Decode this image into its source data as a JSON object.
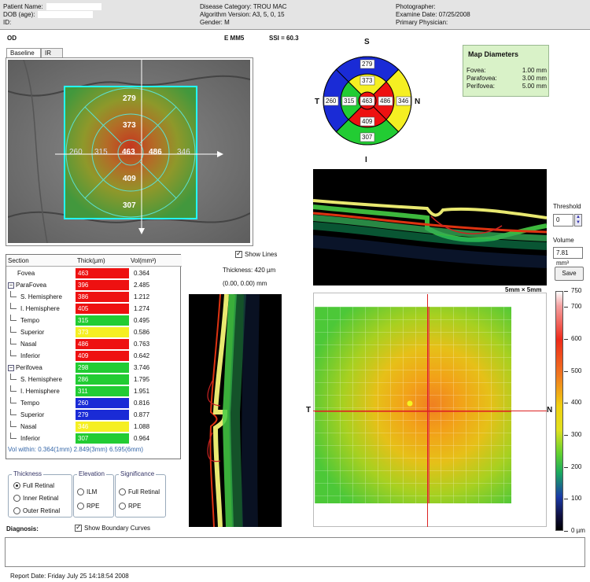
{
  "header": {
    "patient_name_label": "Patient Name:",
    "dob_label": "DOB (age):",
    "id_label": "ID:",
    "disease_category": "Disease Category: TROU MAC",
    "algorithm_version": "Algorithm Version: A3, 5, 0, 15",
    "gender": "Gender: M",
    "photographer": "Photographer:",
    "examine_date": "Examine Date: 07/25/2008",
    "primary_physician": "Primary Physician:"
  },
  "scan": {
    "eye": "OD",
    "protocol": "E MM5",
    "ssi": "SSI = 60.3"
  },
  "tabs": [
    "Baseline",
    "IR"
  ],
  "fundus_values": {
    "top": "279",
    "upper": "373",
    "t_outer": "260",
    "t_inner": "315",
    "center": "463",
    "n_inner": "486",
    "n_outer": "346",
    "lower": "409",
    "bottom": "307"
  },
  "etdrs": {
    "S": "S",
    "N": "N",
    "I": "I",
    "T": "T",
    "colors": {
      "blue": "#1a2bd6",
      "yellow": "#f5ef22",
      "green": "#22cc33",
      "red": "#ee1111"
    }
  },
  "map_diameters": {
    "title": "Map Diameters",
    "rows": [
      {
        "label": "Fovea:",
        "value": "1.00 mm"
      },
      {
        "label": "Parafovea:",
        "value": "3.00 mm"
      },
      {
        "label": "Perifovea:",
        "value": "5.00 mm"
      }
    ]
  },
  "table": {
    "headers": [
      "Section",
      "Thick(µm)",
      "Vol(mm³)"
    ],
    "rows": [
      {
        "section": "Fovea",
        "thick": "463",
        "vol": "0.364",
        "color": "#ee1111",
        "indent": 1
      },
      {
        "section": "ParaFovea",
        "thick": "396",
        "vol": "2.485",
        "color": "#ee1111",
        "indent": 0,
        "group": true
      },
      {
        "section": "S. Hemisphere",
        "thick": "386",
        "vol": "1.212",
        "color": "#ee1111",
        "indent": 2
      },
      {
        "section": "I. Hemisphere",
        "thick": "405",
        "vol": "1.274",
        "color": "#ee1111",
        "indent": 2
      },
      {
        "section": "Tempo",
        "thick": "315",
        "vol": "0.495",
        "color": "#22cc33",
        "indent": 2
      },
      {
        "section": "Superior",
        "thick": "373",
        "vol": "0.586",
        "color": "#f5ef22",
        "indent": 2
      },
      {
        "section": "Nasal",
        "thick": "486",
        "vol": "0.763",
        "color": "#ee1111",
        "indent": 2
      },
      {
        "section": "Inferior",
        "thick": "409",
        "vol": "0.642",
        "color": "#ee1111",
        "indent": 2
      },
      {
        "section": "Perifovea",
        "thick": "298",
        "vol": "3.746",
        "color": "#22cc33",
        "indent": 0,
        "group": true
      },
      {
        "section": "S. Hemisphere",
        "thick": "286",
        "vol": "1.795",
        "color": "#22cc33",
        "indent": 2
      },
      {
        "section": "I. Hemisphere",
        "thick": "311",
        "vol": "1.951",
        "color": "#22cc33",
        "indent": 2
      },
      {
        "section": "Tempo",
        "thick": "260",
        "vol": "0.816",
        "color": "#1a2bd6",
        "indent": 2
      },
      {
        "section": "Superior",
        "thick": "279",
        "vol": "0.877",
        "color": "#1a2bd6",
        "indent": 2
      },
      {
        "section": "Nasal",
        "thick": "346",
        "vol": "1.088",
        "color": "#f5ef22",
        "indent": 2
      },
      {
        "section": "Inferior",
        "thick": "307",
        "vol": "0.964",
        "color": "#22cc33",
        "indent": 2
      }
    ],
    "vol_within": "Vol within: 0.364(1mm) 2.849(3mm) 6.595(6mm)"
  },
  "show_lines": "Show Lines",
  "thickness_readout": "Thickness: 420 µm",
  "coord_readout": "(0.00, 0.00) mm",
  "threshold": {
    "label": "Threshold",
    "value": "0"
  },
  "volume": {
    "label": "Volume",
    "value": "7.81 mm³"
  },
  "save_label": "Save",
  "map_size": "5mm × 5mm",
  "map_T": "T",
  "map_N": "N",
  "colorbar": {
    "ticks": [
      "750",
      "700",
      "600",
      "500",
      "400",
      "300",
      "200",
      "100",
      "0 µm"
    ]
  },
  "options": {
    "thickness": {
      "title": "Thickness",
      "opts": [
        "Full Retinal",
        "Inner Retinal",
        "Outer Retinal"
      ],
      "selected": 0
    },
    "elevation": {
      "title": "Elevation",
      "opts": [
        "ILM",
        "RPE"
      ]
    },
    "significance": {
      "title": "Significance",
      "opts": [
        "Full Retinal",
        "RPE"
      ]
    }
  },
  "diagnosis_label": "Diagnosis:",
  "show_boundary": "Show Boundary Curves",
  "report_date": "Report Date: Friday July 25 14:18:54 2008"
}
